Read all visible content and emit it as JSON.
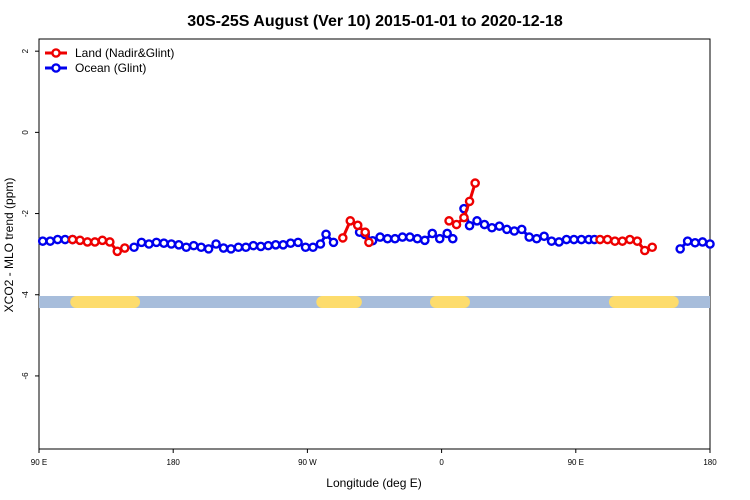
{
  "chart_data": {
    "type": "line",
    "title": "30S-25S August (Ver 10)   2015-01-01 to 2020-12-18",
    "xlabel": "Longitude (deg E)",
    "ylabel": "XCO2 - MLO trend (ppm)",
    "xlim": [
      90,
      450
    ],
    "ylim": [
      -7.8,
      2.3
    ],
    "x_ticks": [
      {
        "value": 90,
        "label": "90 E"
      },
      {
        "value": 162,
        "label": "180"
      },
      {
        "value": 234,
        "label": "90 W"
      },
      {
        "value": 306,
        "label": "0"
      },
      {
        "value": 378,
        "label": "90 E"
      },
      {
        "value": 450,
        "label": "180"
      }
    ],
    "y_ticks": [
      {
        "value": 2,
        "label": "2"
      },
      {
        "value": 0,
        "label": "0"
      },
      {
        "value": -2,
        "label": "-2"
      },
      {
        "value": -4,
        "label": "-4"
      },
      {
        "value": -6,
        "label": "-6"
      }
    ],
    "legend_position": "top-left",
    "land_ocean_band": {
      "y": -4.18,
      "ocean_color": "#a7bddb",
      "land_color": "#fddc6c",
      "land_segments": [
        [
          110,
          141
        ],
        [
          242,
          260
        ],
        [
          303,
          318
        ],
        [
          399,
          430
        ]
      ]
    },
    "series": [
      {
        "name": "Ocean (Glint)",
        "color": "#0000ee",
        "points": [
          [
            92,
            -2.68
          ],
          [
            96,
            -2.68
          ],
          [
            100,
            -2.64
          ],
          [
            104,
            -2.64
          ],
          [
            108,
            -2.64
          ],
          [
            141,
            -2.83
          ],
          [
            145,
            -2.71
          ],
          [
            149,
            -2.75
          ],
          [
            153,
            -2.71
          ],
          [
            157,
            -2.73
          ],
          [
            161,
            -2.75
          ],
          [
            165,
            -2.77
          ],
          [
            169,
            -2.83
          ],
          [
            173,
            -2.79
          ],
          [
            177,
            -2.83
          ],
          [
            181,
            -2.87
          ],
          [
            185,
            -2.75
          ],
          [
            189,
            -2.85
          ],
          [
            193,
            -2.87
          ],
          [
            197,
            -2.83
          ],
          [
            201,
            -2.83
          ],
          [
            205,
            -2.79
          ],
          [
            209,
            -2.81
          ],
          [
            213,
            -2.79
          ],
          [
            217,
            -2.77
          ],
          [
            221,
            -2.77
          ],
          [
            225,
            -2.73
          ],
          [
            229,
            -2.71
          ],
          [
            233,
            -2.83
          ],
          [
            237,
            -2.83
          ],
          [
            241,
            -2.75
          ],
          [
            244,
            -2.51
          ],
          [
            248,
            -2.71
          ],
          [
            262,
            -2.46
          ],
          [
            265,
            -2.52
          ],
          [
            269,
            -2.67
          ],
          [
            273,
            -2.58
          ],
          [
            277,
            -2.62
          ],
          [
            281,
            -2.62
          ],
          [
            285,
            -2.58
          ],
          [
            289,
            -2.58
          ],
          [
            293,
            -2.62
          ],
          [
            297,
            -2.66
          ],
          [
            301,
            -2.49
          ],
          [
            305,
            -2.62
          ],
          [
            309,
            -2.49
          ],
          [
            312,
            -2.62
          ],
          [
            318,
            -1.88
          ],
          [
            321,
            -2.3
          ],
          [
            325,
            -2.18
          ],
          [
            329,
            -2.27
          ],
          [
            333,
            -2.35
          ],
          [
            337,
            -2.31
          ],
          [
            341,
            -2.39
          ],
          [
            345,
            -2.43
          ],
          [
            349,
            -2.39
          ],
          [
            353,
            -2.58
          ],
          [
            357,
            -2.62
          ],
          [
            361,
            -2.56
          ],
          [
            365,
            -2.68
          ],
          [
            369,
            -2.7
          ],
          [
            373,
            -2.64
          ],
          [
            377,
            -2.64
          ],
          [
            381,
            -2.64
          ],
          [
            385,
            -2.64
          ],
          [
            388,
            -2.64
          ],
          [
            434,
            -2.87
          ],
          [
            438,
            -2.68
          ],
          [
            442,
            -2.72
          ],
          [
            446,
            -2.7
          ],
          [
            450,
            -2.75
          ]
        ]
      },
      {
        "name": "Land (Nadir&Glint)",
        "color": "#ee0000",
        "points": [
          [
            108,
            -2.64
          ],
          [
            112,
            -2.66
          ],
          [
            116,
            -2.7
          ],
          [
            120,
            -2.7
          ],
          [
            124,
            -2.66
          ],
          [
            128,
            -2.7
          ],
          [
            132,
            -2.93
          ],
          [
            136,
            -2.85
          ],
          [
            253,
            -2.6
          ],
          [
            257,
            -2.18
          ],
          [
            261,
            -2.29
          ],
          [
            265,
            -2.46
          ],
          [
            267,
            -2.71
          ],
          [
            310,
            -2.18
          ],
          [
            314,
            -2.27
          ],
          [
            318,
            -2.1
          ],
          [
            321,
            -1.7
          ],
          [
            324,
            -1.25
          ],
          [
            391,
            -2.64
          ],
          [
            395,
            -2.64
          ],
          [
            399,
            -2.68
          ],
          [
            403,
            -2.68
          ],
          [
            407,
            -2.64
          ],
          [
            411,
            -2.68
          ],
          [
            415,
            -2.91
          ],
          [
            419,
            -2.83
          ]
        ]
      }
    ]
  }
}
